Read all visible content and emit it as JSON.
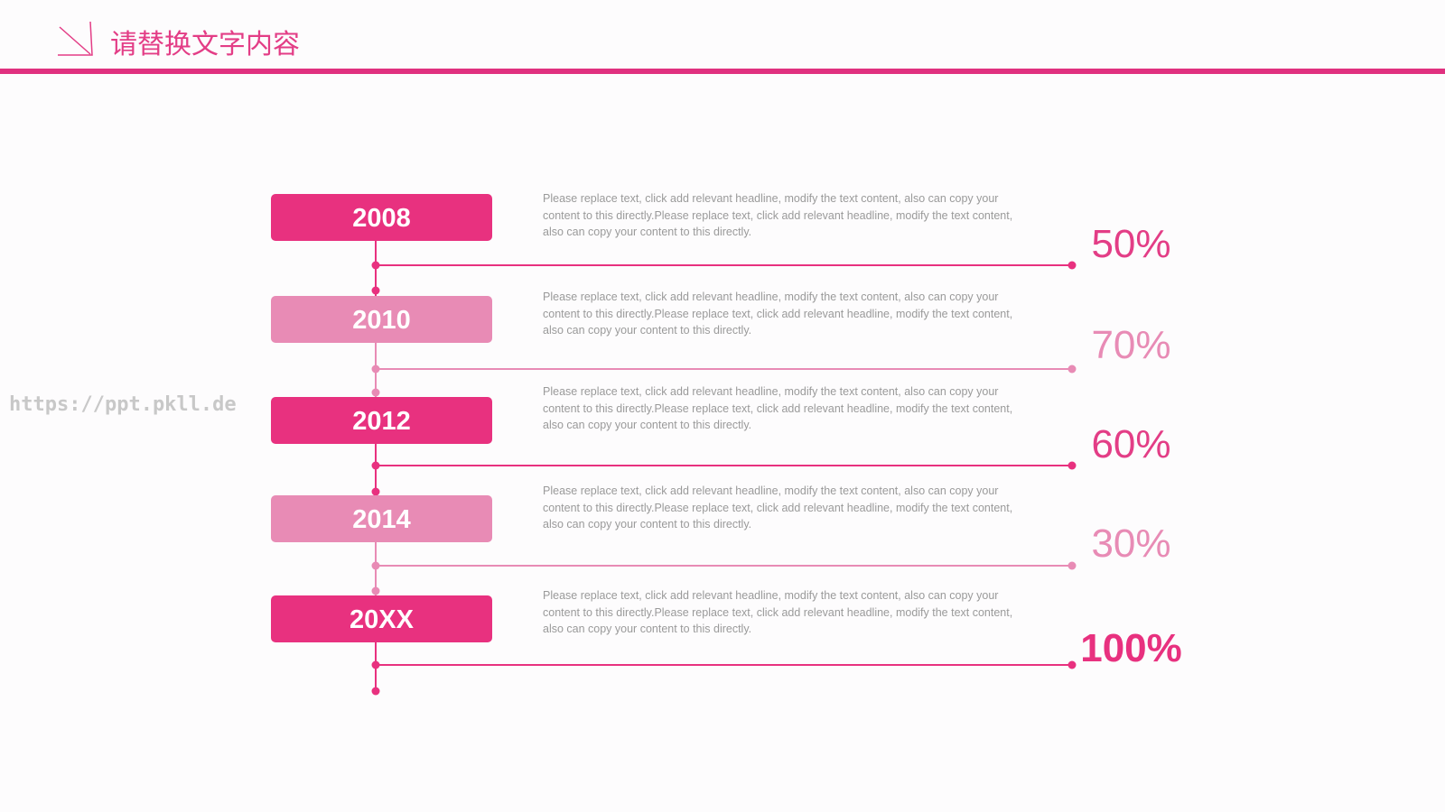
{
  "header": {
    "title": "请替换文字内容"
  },
  "watermark": "https://ppt.pkll.de",
  "items": [
    {
      "year": "2008",
      "text": "Please replace text, click add relevant headline, modify the text content, also can copy your content to this directly.Please replace text, click add relevant headline, modify the text content, also can copy your content to this directly.",
      "percent": "50%"
    },
    {
      "year": "2010",
      "text": "Please replace text, click add relevant headline, modify the text content, also can copy your content to this directly.Please replace text, click add relevant headline, modify the text content, also can copy your content to this directly.",
      "percent": "70%"
    },
    {
      "year": "2012",
      "text": "Please replace text, click add relevant headline, modify the text content, also can copy your content to this directly.Please replace text, click add relevant headline, modify the text content, also can copy your content to this directly.",
      "percent": "60%"
    },
    {
      "year": "2014",
      "text": "Please replace text, click add relevant headline, modify the text content, also can copy your content to this directly.Please replace text, click add relevant headline, modify the text content, also can copy your content to this directly.",
      "percent": "30%"
    },
    {
      "year": "20XX",
      "text": "Please replace text, click add relevant headline, modify the text content, also can copy your content to this directly.Please replace text, click add relevant headline, modify the text content, also can copy your content to this directly.",
      "percent": "100%"
    }
  ]
}
